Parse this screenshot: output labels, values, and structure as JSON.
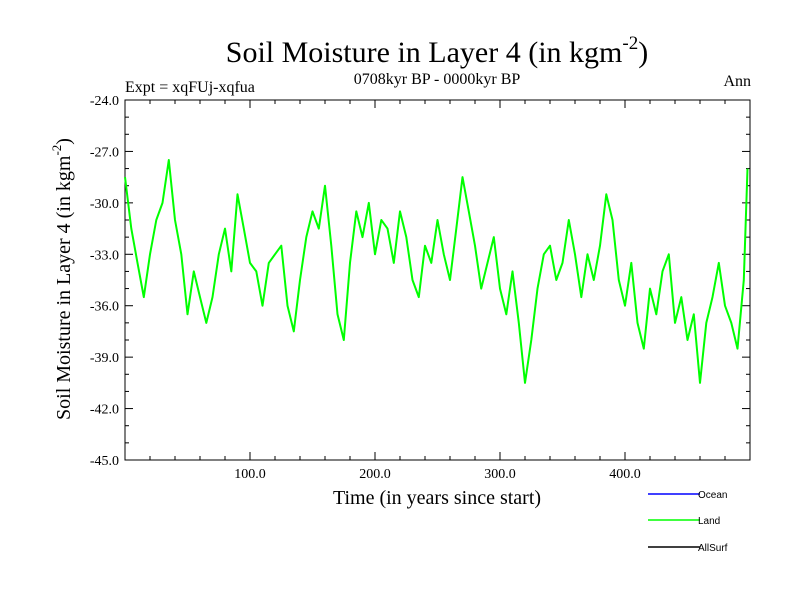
{
  "chart_data": {
    "type": "line",
    "title_main": "Soil Moisture in Layer 4 (in kgm",
    "title_sup": "-2",
    "title_close": ")",
    "subtitle": "0708kyr BP - 0000kyr BP",
    "left_label": "Expt = xqFUj-xqfua",
    "right_label": "Ann",
    "xlabel": "Time (in years since start)",
    "ylabel_main": "Soil Moisture in Layer 4 (in kgm",
    "ylabel_sup": "-2",
    "ylabel_close": ")",
    "xlim": [
      0,
      500
    ],
    "ylim": [
      -45,
      -24
    ],
    "x_ticks": [
      100,
      200,
      300,
      400
    ],
    "x_tick_labels": [
      "100.0",
      "200.0",
      "300.0",
      "400.0"
    ],
    "y_ticks": [
      -45,
      -42,
      -39,
      -36,
      -33,
      -30,
      -27,
      -24
    ],
    "y_tick_labels": [
      "-45.0",
      "-42.0",
      "-39.0",
      "-36.0",
      "-33.0",
      "-30.0",
      "-27.0",
      "-24.0"
    ],
    "legend": [
      {
        "name": "Ocean",
        "color": "#0000ff"
      },
      {
        "name": "Land",
        "color": "#00ff00"
      },
      {
        "name": "AllSurf",
        "color": "#000000"
      }
    ],
    "series": [
      {
        "name": "Land",
        "color": "#00ff00",
        "x": [
          0,
          5,
          10,
          15,
          20,
          25,
          30,
          35,
          40,
          45,
          50,
          55,
          60,
          65,
          70,
          75,
          80,
          85,
          90,
          95,
          100,
          105,
          110,
          115,
          120,
          125,
          130,
          135,
          140,
          145,
          150,
          155,
          160,
          165,
          170,
          175,
          180,
          185,
          190,
          195,
          200,
          205,
          210,
          215,
          220,
          225,
          230,
          235,
          240,
          245,
          250,
          255,
          260,
          265,
          270,
          275,
          280,
          285,
          290,
          295,
          300,
          305,
          310,
          315,
          320,
          325,
          330,
          335,
          340,
          345,
          350,
          355,
          360,
          365,
          370,
          375,
          380,
          385,
          390,
          395,
          400,
          405,
          410,
          415,
          420,
          425,
          430,
          435,
          440,
          445,
          450,
          455,
          460,
          465,
          470,
          475,
          480,
          485,
          490,
          495,
          498
        ],
        "values": [
          -28.5,
          -31.5,
          -33.5,
          -35.5,
          -33.0,
          -31.0,
          -30.0,
          -27.5,
          -31.0,
          -33.0,
          -36.5,
          -34.0,
          -35.5,
          -37.0,
          -35.5,
          -33.0,
          -31.5,
          -34.0,
          -29.5,
          -31.5,
          -33.5,
          -34.0,
          -36.0,
          -33.5,
          -33.0,
          -32.5,
          -36.0,
          -37.5,
          -34.5,
          -32.0,
          -30.5,
          -31.5,
          -29.0,
          -32.5,
          -36.5,
          -38.0,
          -33.5,
          -30.5,
          -32.0,
          -30.0,
          -33.0,
          -31.0,
          -31.5,
          -33.5,
          -30.5,
          -32.0,
          -34.5,
          -35.5,
          -32.5,
          -33.5,
          -31.0,
          -33.0,
          -34.5,
          -31.5,
          -28.5,
          -30.5,
          -32.5,
          -35.0,
          -33.5,
          -32.0,
          -35.0,
          -36.5,
          -34.0,
          -37.0,
          -40.5,
          -38.0,
          -35.0,
          -33.0,
          -32.5,
          -34.5,
          -33.5,
          -31.0,
          -33.0,
          -35.5,
          -33.0,
          -34.5,
          -32.5,
          -29.5,
          -31.0,
          -34.5,
          -36.0,
          -33.5,
          -37.0,
          -38.5,
          -35.0,
          -36.5,
          -34.0,
          -33.0,
          -37.0,
          -35.5,
          -38.0,
          -36.5,
          -40.5,
          -37.0,
          -35.5,
          -33.5,
          -36.0,
          -37.0,
          -38.5,
          -34.5,
          -28.0
        ]
      }
    ]
  }
}
